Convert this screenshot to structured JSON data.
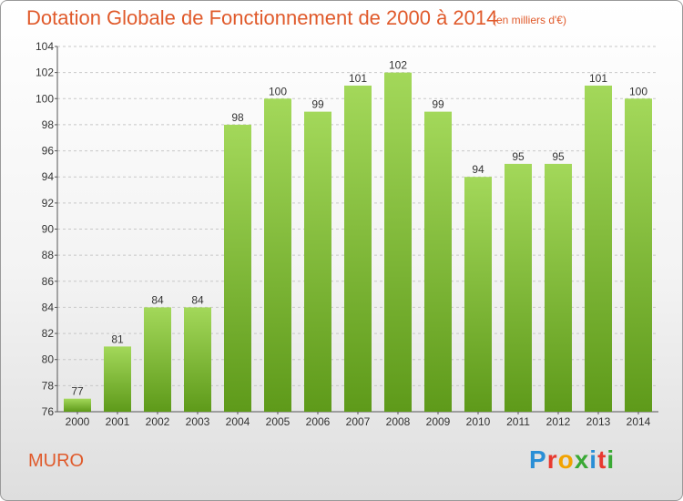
{
  "header": {
    "title": "Dotation Globale de Fonctionnement de 2000 à 2014",
    "subtitle": "(en milliers d'€)"
  },
  "footer": {
    "commune": "MURO",
    "logo_letters": [
      "P",
      "r",
      "o",
      "x",
      "i",
      "t",
      "i"
    ],
    "logo_colors": [
      "#2a8fd6",
      "#e8392f",
      "#f2a300",
      "#3aa935",
      "#2a8fd6",
      "#e8392f",
      "#3aa935"
    ]
  },
  "chart_data": {
    "type": "bar",
    "categories": [
      "2000",
      "2001",
      "2002",
      "2003",
      "2004",
      "2005",
      "2006",
      "2007",
      "2008",
      "2009",
      "2010",
      "2011",
      "2012",
      "2013",
      "2014"
    ],
    "values": [
      77,
      81,
      84,
      84,
      98,
      100,
      99,
      101,
      102,
      99,
      94,
      95,
      95,
      101,
      100
    ],
    "title": "Dotation Globale de Fonctionnement de 2000 à 2014",
    "xlabel": "",
    "ylabel": "",
    "ylim": [
      76,
      104
    ],
    "yticks": [
      76,
      78,
      80,
      82,
      84,
      86,
      88,
      90,
      92,
      94,
      96,
      98,
      100,
      102,
      104
    ],
    "grid": true,
    "bar_color_light": "#a3d85a",
    "bar_color_dark": "#5e9a1a"
  }
}
